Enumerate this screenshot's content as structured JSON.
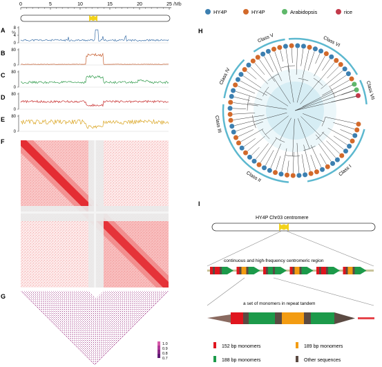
{
  "axis": {
    "ticks": [
      "0",
      "5",
      "10",
      "15",
      "20",
      "25"
    ],
    "unit": "/Mb"
  },
  "panels": {
    "A": {
      "letter": "A",
      "unit": "%",
      "ticks": [
        "8",
        "4",
        "0"
      ],
      "color": "#3a6fa8"
    },
    "B": {
      "letter": "B",
      "ticks": [
        "80",
        "0"
      ],
      "color": "#c55a2a"
    },
    "C": {
      "letter": "C",
      "ticks": [
        "80",
        "0"
      ],
      "color": "#2f9a4a"
    },
    "D": {
      "letter": "D",
      "ticks": [
        "80",
        "0"
      ],
      "color": "#c62828"
    },
    "E": {
      "letter": "E",
      "ticks": [
        "80",
        "0"
      ],
      "color": "#d9a21b"
    },
    "F": {
      "letter": "F"
    },
    "G": {
      "letter": "G",
      "scale": [
        "1.0",
        "0.9",
        "0.8",
        "0.7"
      ]
    },
    "H": {
      "letter": "H"
    },
    "I": {
      "letter": "I"
    }
  },
  "legend_h": [
    {
      "label": "HY4P",
      "color": "#3c7fb0"
    },
    {
      "label": "HY4P",
      "color": "#d2692a"
    },
    {
      "label": "Arabidopsis",
      "color": "#5fb86a"
    },
    {
      "label": "rice",
      "color": "#c23a4a"
    }
  ],
  "tree_classes": [
    "Class I",
    "Class II",
    "Class III",
    "Class IV",
    "Class V",
    "Class VI",
    "Class VII"
  ],
  "panel_i": {
    "title": "HY4P Chr03 centromere",
    "region_label": "continuous and high-frequency centromeric region",
    "tandem_label": "a set of monomers in repeat tandem",
    "legend": [
      {
        "label": "152 bp monomers",
        "color": "#e0151e"
      },
      {
        "label": "189 bp monomers",
        "color": "#f39c12"
      },
      {
        "label": "188 bp monomers",
        "color": "#1c9a4a"
      },
      {
        "label": "Other sequences",
        "color": "#5b4a42"
      }
    ]
  },
  "colors": {
    "centromere": "#f2d21b",
    "heatmap": "#e0151e",
    "triangle": "#9b3a84"
  }
}
